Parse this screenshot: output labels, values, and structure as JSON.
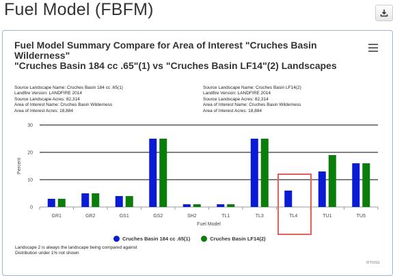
{
  "page": {
    "title": "Fuel Model (FBFM)",
    "download_icon": "download-icon"
  },
  "chart_card": {
    "title_lines": [
      "Fuel Model Summary Compare for Area of Interest \"Cruches Basin",
      "Wilderness\"",
      "\"Cruches Basin 184 cc .65\"(1) vs \"Cruches Basin LF14\"(2) Landscapes"
    ],
    "menu_icon": "hamburger-menu-icon",
    "info_left": [
      "Source Landscape Name: Cruches Basin 184 cc .65(1)",
      "Landfire Version: LANDFIRE 2014",
      "Source Landscape Acres: 82,314",
      "Area of Interest Name: Cruches Basin Wilderness",
      "Area of Interest Acres: 18,884"
    ],
    "info_right": [
      "Source Landscape Name: Cruches Basin LF14(2)",
      "Landfire Version: LANDFIRE 2014",
      "Source Landscape Acres: 82,314",
      "Area of Interest Name: Cruches Basin Wilderness",
      "Area of Interest Acres: 18,884"
    ],
    "notes": [
      "Landscape 2 is always the landscape being compared against",
      "Distribution under 1% not shown"
    ],
    "credits": "IFTDSS"
  },
  "chart_data": {
    "type": "bar",
    "categories": [
      "GR1",
      "GR2",
      "GS1",
      "GS2",
      "SH2",
      "TL1",
      "TL3",
      "TL4",
      "TU1",
      "TU5"
    ],
    "series": [
      {
        "name": "Cruches Basin 184 cc .65(1)",
        "color": "#0a1bd6",
        "values": [
          3,
          5,
          4,
          25,
          1,
          1,
          25,
          6,
          13,
          16
        ]
      },
      {
        "name": "Cruches Basin LF14(2)",
        "color": "#0a7d0a",
        "values": [
          3,
          5,
          4,
          25,
          1,
          1,
          25,
          0,
          19,
          16
        ]
      }
    ],
    "xlabel": "Fuel Model",
    "ylabel": "Percent",
    "yticks": [
      0,
      10,
      20,
      30
    ],
    "ylim": [
      0,
      30
    ],
    "grid": true,
    "legend_position": "bottom-center",
    "highlighted_category": "TL4",
    "highlight_color": "#e06060"
  }
}
